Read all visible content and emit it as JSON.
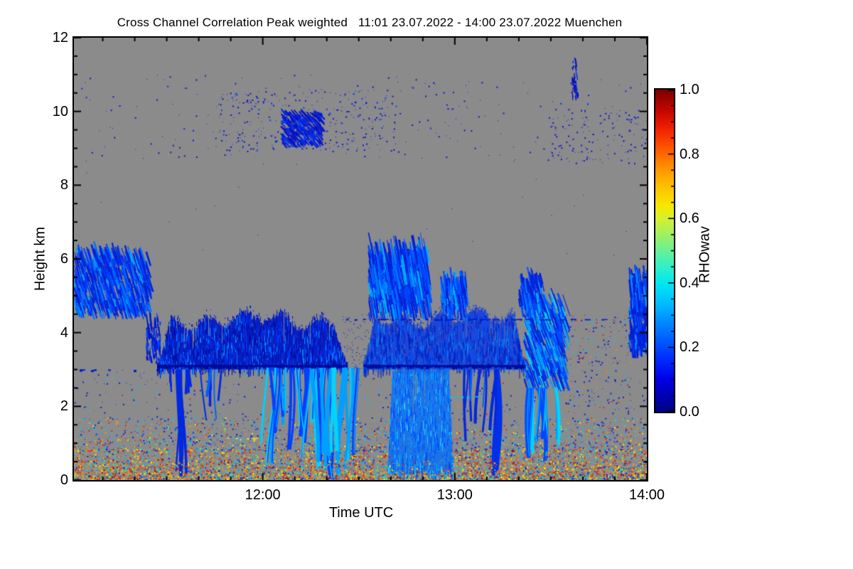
{
  "title": {
    "text": "Cross Channel Correlation Peak weighted   11:01 23.07.2022 - 14:00 23.07.2022 Muenchen"
  },
  "axes": {
    "x": {
      "label": "Time UTC",
      "tick_labels": [
        "12:00",
        "13:00",
        "14:00"
      ],
      "tick_minutes": [
        59,
        119,
        179
      ],
      "minor_step_min": 10,
      "minor_offset_min": 9,
      "start_time": "11:01",
      "end_time": "14:00",
      "span_minutes": 179
    },
    "y": {
      "label": "Height km",
      "tick_labels": [
        "0",
        "2",
        "4",
        "6",
        "8",
        "10",
        "12"
      ],
      "tick_values": [
        0,
        2,
        4,
        6,
        8,
        10,
        12
      ],
      "minor_step": 0.5,
      "range": [
        0,
        12
      ]
    }
  },
  "colorbar": {
    "label": "RHOwav",
    "tick_labels": [
      "0.0",
      "0.2",
      "0.4",
      "0.6",
      "0.8",
      "1.0"
    ],
    "tick_values": [
      0,
      0.2,
      0.4,
      0.6,
      0.8,
      1.0
    ],
    "minor_step": 0.05,
    "range": [
      0,
      1
    ],
    "gradient": [
      [
        0.0,
        "#000082"
      ],
      [
        0.05,
        "#0000b4"
      ],
      [
        0.1,
        "#0000e6"
      ],
      [
        0.16,
        "#0028ff"
      ],
      [
        0.22,
        "#005aff"
      ],
      [
        0.28,
        "#008cff"
      ],
      [
        0.34,
        "#00c0ff"
      ],
      [
        0.4,
        "#00e8f0"
      ],
      [
        0.45,
        "#30f0c8"
      ],
      [
        0.5,
        "#68f096"
      ],
      [
        0.55,
        "#a0f060"
      ],
      [
        0.6,
        "#d8f030"
      ],
      [
        0.64,
        "#f8e800"
      ],
      [
        0.7,
        "#ffc000"
      ],
      [
        0.76,
        "#ff9000"
      ],
      [
        0.82,
        "#ff5400"
      ],
      [
        0.88,
        "#f02000"
      ],
      [
        0.93,
        "#c80800"
      ],
      [
        1.0,
        "#7a0000"
      ]
    ]
  },
  "colors": {
    "plot_bg": "#8b8b8b",
    "axis": "#000000",
    "text": "#000000",
    "page_bg": "#ffffff"
  },
  "chart_data": {
    "type": "heatmap",
    "title": "Cross Channel Correlation Peak weighted",
    "time_range": "11:01 23.07.2022 - 14:00 23.07.2022",
    "station": "Muenchen",
    "xlabel": "Time UTC",
    "ylabel": "Height km",
    "value_label": "RHOwav",
    "x_domain_minutes": [
      0,
      179
    ],
    "y_domain_km": [
      0,
      12
    ],
    "value_range": [
      0,
      1
    ],
    "no_data_color": "#8b8b8b",
    "seed": 42,
    "features": [
      {
        "type": "speckle",
        "name": "high-cloud-scatter",
        "t": [
          2,
          178
        ],
        "h": [
          8.7,
          11.0
        ],
        "n": 240,
        "size": 2,
        "colors": [
          [
            "#1616c8",
            0.8
          ],
          [
            "#0030e8",
            0.2
          ]
        ]
      },
      {
        "type": "speckle",
        "name": "high-cloud-scatter-core",
        "t": [
          44,
          101
        ],
        "h": [
          8.9,
          10.6
        ],
        "n": 320,
        "size": 2,
        "colors": [
          [
            "#1616c8",
            0.75
          ],
          [
            "#0040ff",
            0.25
          ]
        ]
      },
      {
        "type": "speckle",
        "name": "high-cloud-scatter-right",
        "t": [
          148,
          179
        ],
        "h": [
          8.6,
          10.1
        ],
        "n": 130,
        "size": 2,
        "colors": [
          [
            "#1616c8",
            1
          ]
        ]
      },
      {
        "type": "streaks",
        "name": "cirrus-blob",
        "t": [
          64.5,
          77
        ],
        "h": [
          9.0,
          9.9
        ],
        "n": 300,
        "len": [
          3,
          10
        ],
        "w": 2,
        "tilt": 0.9,
        "colors": [
          [
            "#0a12c0",
            0.6
          ],
          [
            "#0034f0",
            0.4
          ]
        ]
      },
      {
        "type": "streaks",
        "name": "contrail-streak",
        "t": [
          155.4,
          157.4
        ],
        "h": [
          10.3,
          11.35
        ],
        "n": 34,
        "len": [
          3,
          9
        ],
        "w": 2,
        "tilt": 0.15,
        "colors": [
          [
            "#0a12c0",
            0.7
          ],
          [
            "#0038f0",
            0.3
          ]
        ]
      },
      {
        "type": "speckle",
        "name": "upper-sparse-dots",
        "t": [
          0,
          179
        ],
        "h": [
          6.0,
          8.7
        ],
        "n": 26,
        "size": 1,
        "colors": [
          [
            "#1616c8",
            1
          ]
        ]
      },
      {
        "type": "speckle",
        "name": "mid-level-specks",
        "t": [
          0,
          179
        ],
        "h": [
          1.55,
          3.0
        ],
        "n": 380,
        "size": 2,
        "colors": [
          [
            "#1022d0",
            0.68
          ],
          [
            "#00c8f0",
            0.16
          ],
          [
            "#ff8000",
            0.08
          ],
          [
            "#e02810",
            0.08
          ]
        ]
      },
      {
        "type": "hline",
        "name": "dash-line-49km",
        "t": [
          0,
          20
        ],
        "h": 4.9,
        "lw": 2,
        "dashP": 0.45,
        "color": "#0030e0"
      },
      {
        "type": "hline",
        "name": "dash-line-left-3km",
        "t": [
          0,
          26
        ],
        "h": 2.97,
        "lw": 3,
        "dashP": 0.3,
        "color": "#0020d0"
      },
      {
        "type": "streaks",
        "name": "left-midlevel-cloud",
        "t": [
          0,
          23
        ],
        "h": [
          4.35,
          6.0
        ],
        "n": 720,
        "len": [
          6,
          26
        ],
        "w": 2,
        "tilt": 0.3,
        "colors": [
          [
            "#0020d8",
            0.45
          ],
          [
            "#0044ff",
            0.3
          ],
          [
            "#0070ff",
            0.17
          ],
          [
            "#00a8ff",
            0.08
          ]
        ]
      },
      {
        "type": "speckle",
        "name": "boundary-layer-upper",
        "t": [
          0,
          179
        ],
        "h": [
          0.8,
          1.7
        ],
        "n": 2300,
        "size": 2,
        "bias": 1.7,
        "colors": [
          [
            "#00c8f0",
            0.2
          ],
          [
            "#0040ff",
            0.18
          ],
          [
            "#1018c8",
            0.16
          ],
          [
            "#e02810",
            0.12
          ],
          [
            "#ff9800",
            0.11
          ],
          [
            "#ffe400",
            0.11
          ],
          [
            "#40d890",
            0.07
          ],
          [
            "#ff4000",
            0.05
          ]
        ]
      },
      {
        "type": "speckle",
        "name": "boundary-layer-lower",
        "t": [
          0,
          179
        ],
        "h": [
          0.0,
          0.85
        ],
        "n": 5200,
        "size": 2,
        "bias": 1.5,
        "colors": [
          [
            "#e02810",
            0.22
          ],
          [
            "#ff9800",
            0.18
          ],
          [
            "#ffe400",
            0.18
          ],
          [
            "#00c8f0",
            0.13
          ],
          [
            "#0040ff",
            0.1
          ],
          [
            "#40d890",
            0.07
          ],
          [
            "#a00000",
            0.06
          ],
          [
            "#1018c8",
            0.06
          ]
        ]
      },
      {
        "type": "streaks",
        "name": "band-left-ragged-edge",
        "t": [
          22.5,
          27
        ],
        "h": [
          3.1,
          4.3
        ],
        "n": 90,
        "len": [
          4,
          14
        ],
        "w": 2,
        "tilt": 0.1,
        "colors": [
          [
            "#0018c8",
            0.7
          ],
          [
            "#0040ff",
            0.3
          ]
        ]
      },
      {
        "type": "band",
        "name": "main-cloud-band-a",
        "t": [
          26,
          85.5
        ],
        "base": 3.0,
        "top": [
          4.05,
          4.62
        ],
        "holeP": 0.05,
        "colors": {
          "base": "#0018c8",
          "dark": "#000f9e",
          "bright": "#0040ff",
          "light": "#0090ff"
        }
      },
      {
        "type": "band",
        "name": "main-cloud-band-b",
        "t": [
          90.5,
          141
        ],
        "base": 3.0,
        "top": [
          4.1,
          4.68
        ],
        "holeP": 0.08,
        "colors": {
          "base": "#0030e8",
          "dark": "#0014b0",
          "bright": "#0058ff",
          "light": "#00a8ff"
        }
      },
      {
        "type": "streaks",
        "name": "cloud-blob-c",
        "t": [
          140.5,
          153
        ],
        "h": [
          2.4,
          4.7
        ],
        "n": 430,
        "len": [
          8,
          30
        ],
        "w": 2,
        "tilt": 0.35,
        "colors": [
          [
            "#0024d8",
            0.35
          ],
          [
            "#0048ff",
            0.3
          ],
          [
            "#00a0ff",
            0.2
          ],
          [
            "#00d8ff",
            0.15
          ]
        ]
      },
      {
        "type": "columns",
        "name": "dangling-streaks-a",
        "t": [
          29,
          38
        ],
        "hTop": 3.0,
        "hBot": [
          2.0,
          2.7
        ],
        "n": 6,
        "w": 3,
        "colors": [
          [
            "#0028e0",
            0.8
          ],
          [
            "#0060ff",
            0.2
          ]
        ]
      },
      {
        "type": "columns",
        "name": "ground-streak-1",
        "t": [
          32.6,
          34.4
        ],
        "hTop": 3.0,
        "hBot": [
          0.05,
          0.3
        ],
        "n": 4,
        "w": 4,
        "colors": [
          [
            "#0028e0",
            0.7
          ],
          [
            "#0060ff",
            0.3
          ]
        ]
      },
      {
        "type": "columns",
        "name": "dangling-streaks-b",
        "t": [
          39,
          46
        ],
        "hTop": 3.0,
        "hBot": [
          1.6,
          2.7
        ],
        "n": 6,
        "w": 3,
        "colors": [
          [
            "#0028e0",
            0.8
          ],
          [
            "#0060ff",
            0.2
          ]
        ]
      },
      {
        "type": "columns",
        "name": "fall-streaks-1",
        "t": [
          59,
          75
        ],
        "hTop": 3.05,
        "hBot": [
          0.4,
          2.0
        ],
        "n": 16,
        "w": 4,
        "colors": [
          [
            "#0040ff",
            0.4
          ],
          [
            "#00a0ff",
            0.35
          ],
          [
            "#00d0ff",
            0.25
          ]
        ]
      },
      {
        "type": "columns",
        "name": "fall-streaks-2",
        "t": [
          75,
          88.5
        ],
        "hTop": 3.05,
        "hBot": [
          0.0,
          0.9
        ],
        "n": 16,
        "w": 5,
        "colors": [
          [
            "#00a0ff",
            0.4
          ],
          [
            "#00d4ff",
            0.35
          ],
          [
            "#0040ff",
            0.25
          ]
        ]
      },
      {
        "type": "band",
        "name": "precipitation-column",
        "t": [
          98,
          118.5
        ],
        "base": [
          0.0,
          0.3
        ],
        "top": [
          2.95,
          3.05
        ],
        "holeP": 0.04,
        "colors": {
          "base": "#0070ff",
          "dark": "#0040ff",
          "bright": "#00b0ff",
          "light": "#40e0ff"
        }
      },
      {
        "type": "columns",
        "name": "ground-streak-2",
        "t": [
          131.1,
          132.8
        ],
        "hTop": 3.0,
        "hBot": [
          0.0,
          0.25
        ],
        "n": 4,
        "w": 4,
        "colors": [
          [
            "#0030e8",
            0.6
          ],
          [
            "#0070ff",
            0.4
          ]
        ]
      },
      {
        "type": "columns",
        "name": "dangling-streaks-c",
        "t": [
          122,
          133
        ],
        "hTop": 3.0,
        "hBot": [
          0.9,
          2.3
        ],
        "n": 10,
        "w": 3,
        "colors": [
          [
            "#0028e0",
            0.7
          ],
          [
            "#0060ff",
            0.3
          ]
        ]
      },
      {
        "type": "columns",
        "name": "fall-streaks-3",
        "t": [
          142,
          152.5
        ],
        "hTop": 2.5,
        "hBot": [
          0.3,
          1.4
        ],
        "n": 12,
        "w": 4,
        "colors": [
          [
            "#00a0ff",
            0.4
          ],
          [
            "#00d4ff",
            0.3
          ],
          [
            "#0048ff",
            0.3
          ]
        ]
      },
      {
        "type": "streaks",
        "name": "updraft-plumes-main",
        "t": [
          92,
          110.5
        ],
        "h": [
          4.3,
          5.95
        ],
        "n": 620,
        "len": [
          10,
          42
        ],
        "w": 2,
        "tilt": 0.18,
        "colors": [
          [
            "#0020d8",
            0.38
          ],
          [
            "#0048ff",
            0.3
          ],
          [
            "#0078ff",
            0.2
          ],
          [
            "#00b4ff",
            0.12
          ]
        ]
      },
      {
        "type": "streaks",
        "name": "updraft-plumes-2",
        "t": [
          114.5,
          122.5
        ],
        "h": [
          4.3,
          5.25
        ],
        "n": 170,
        "len": [
          8,
          30
        ],
        "w": 2,
        "tilt": 0.12,
        "colors": [
          [
            "#0020d8",
            0.4
          ],
          [
            "#0048ff",
            0.3
          ],
          [
            "#0078ff",
            0.2
          ],
          [
            "#00b4ff",
            0.1
          ]
        ]
      },
      {
        "type": "streaks",
        "name": "updraft-plumes-3",
        "t": [
          139,
          146
        ],
        "h": [
          4.4,
          5.35
        ],
        "n": 130,
        "len": [
          8,
          26
        ],
        "w": 2,
        "tilt": 0.2,
        "colors": [
          [
            "#0020d8",
            0.4
          ],
          [
            "#0048ff",
            0.3
          ],
          [
            "#0078ff",
            0.2
          ],
          [
            "#00b4ff",
            0.1
          ]
        ]
      },
      {
        "type": "streaks",
        "name": "right-edge-cloud",
        "t": [
          173.5,
          179
        ],
        "h": [
          3.3,
          5.4
        ],
        "n": 260,
        "len": [
          8,
          30
        ],
        "w": 2,
        "tilt": 0.1,
        "colors": [
          [
            "#0020d8",
            0.5
          ],
          [
            "#0048ff",
            0.3
          ],
          [
            "#0090ff",
            0.2
          ]
        ]
      },
      {
        "type": "hline",
        "name": "melting-layer-line-a",
        "t": [
          26,
          85.5
        ],
        "h": 3.08,
        "lw": 5,
        "dashP": 1,
        "color": "#000a96"
      },
      {
        "type": "hline",
        "name": "melting-layer-line-b",
        "t": [
          90.5,
          141
        ],
        "h": 3.08,
        "lw": 5,
        "dashP": 1,
        "color": "#000a96"
      },
      {
        "type": "hline",
        "name": "band-top-dash-line",
        "t": [
          85,
          172
        ],
        "h": 4.35,
        "lw": 2,
        "dashP": 0.5,
        "color": "#0018c8"
      },
      {
        "type": "hline",
        "name": "cyan-dash-line",
        "t": [
          116.5,
          127
        ],
        "h": 2.25,
        "lw": 2,
        "dashP": 0.6,
        "color": "#00c8f0"
      },
      {
        "type": "hline",
        "name": "yellow-dash-line",
        "t": [
          46,
          57
        ],
        "h": 1.12,
        "lw": 2,
        "dashP": 0.5,
        "color": "#e0e020"
      },
      {
        "type": "speckle",
        "name": "band-gap-specks",
        "t": [
          84,
          92
        ],
        "h": [
          3.0,
          4.5
        ],
        "n": 90,
        "size": 1,
        "colors": [
          [
            "#0018c8",
            1
          ]
        ]
      },
      {
        "type": "speckle",
        "name": "right-gap-specks",
        "t": [
          153,
          174
        ],
        "h": [
          1.8,
          4.5
        ],
        "n": 240,
        "size": 2,
        "colors": [
          [
            "#1022d0",
            0.55
          ],
          [
            "#00c8f0",
            0.2
          ],
          [
            "#ff8000",
            0.12
          ],
          [
            "#e02810",
            0.13
          ]
        ]
      },
      {
        "type": "speckle",
        "name": "ground-speckle-overlay",
        "t": [
          0,
          179
        ],
        "h": [
          0.0,
          0.55
        ],
        "n": 1700,
        "size": 2,
        "bias": 1.4,
        "colors": [
          [
            "#e02810",
            0.24
          ],
          [
            "#ff9800",
            0.2
          ],
          [
            "#ffe400",
            0.2
          ],
          [
            "#00c8f0",
            0.12
          ],
          [
            "#0040ff",
            0.09
          ],
          [
            "#40d890",
            0.07
          ],
          [
            "#a00000",
            0.08
          ]
        ]
      }
    ]
  }
}
